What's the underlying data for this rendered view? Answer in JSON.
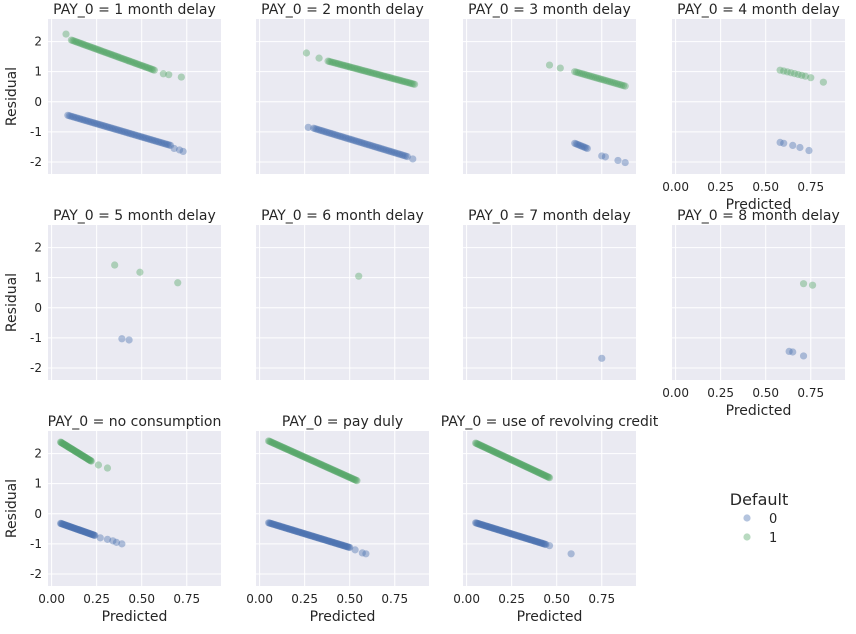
{
  "chart_data": {
    "type": "scatter",
    "facet_title_prefix": "PAY_0 = ",
    "xlabel": "Predicted",
    "ylabel": "Residual",
    "xlim": [
      -0.02,
      0.94
    ],
    "ylim": [
      -2.4,
      2.75
    ],
    "x_ticks": [
      "0.00",
      "0.25",
      "0.50",
      "0.75"
    ],
    "y_ticks": [
      "2",
      "1",
      "0",
      "-1",
      "-2"
    ],
    "grid": true,
    "legend": {
      "title": "Default",
      "position": "lower-right",
      "entries": [
        "0",
        "1"
      ]
    },
    "colors": {
      "0": "#4c72b0",
      "1": "#55a868",
      "axes_bg": "#eaeaf2",
      "grid": "#ffffff"
    },
    "panels": [
      {
        "title": "1 month delay",
        "series": [
          {
            "name": "0",
            "segments": [
              [
                0.09,
                -0.45,
                0.66,
                -1.45,
                70
              ]
            ],
            "points": [
              [
                0.68,
                -1.55
              ],
              [
                0.71,
                -1.6
              ],
              [
                0.73,
                -1.65
              ]
            ]
          },
          {
            "name": "1",
            "segments": [
              [
                0.11,
                2.05,
                0.57,
                1.05,
                60
              ]
            ],
            "points": [
              [
                0.08,
                2.25
              ],
              [
                0.62,
                0.93
              ],
              [
                0.65,
                0.9
              ],
              [
                0.72,
                0.82
              ]
            ]
          }
        ]
      },
      {
        "title": "2 month delay",
        "series": [
          {
            "name": "0",
            "segments": [
              [
                0.3,
                -0.88,
                0.82,
                -1.82,
                60
              ]
            ],
            "points": [
              [
                0.27,
                -0.85
              ],
              [
                0.85,
                -1.9
              ]
            ]
          },
          {
            "name": "1",
            "segments": [
              [
                0.38,
                1.35,
                0.86,
                0.58,
                60
              ]
            ],
            "points": [
              [
                0.26,
                1.62
              ],
              [
                0.33,
                1.45
              ]
            ]
          }
        ]
      },
      {
        "title": "3 month delay",
        "series": [
          {
            "name": "0",
            "segments": [
              [
                0.6,
                -1.38,
                0.67,
                -1.55,
                10
              ]
            ],
            "points": [
              [
                0.75,
                -1.8
              ],
              [
                0.77,
                -1.83
              ],
              [
                0.84,
                -1.95
              ],
              [
                0.88,
                -2.02
              ]
            ]
          },
          {
            "name": "1",
            "segments": [
              [
                0.6,
                1.0,
                0.88,
                0.52,
                30
              ]
            ],
            "points": [
              [
                0.46,
                1.22
              ],
              [
                0.52,
                1.12
              ]
            ]
          }
        ]
      },
      {
        "title": "4 month delay",
        "series": [
          {
            "name": "0",
            "segments": [],
            "points": [
              [
                0.58,
                -1.35
              ],
              [
                0.6,
                -1.38
              ],
              [
                0.65,
                -1.45
              ],
              [
                0.69,
                -1.52
              ],
              [
                0.74,
                -1.62
              ]
            ]
          },
          {
            "name": "1",
            "segments": [
              [
                0.58,
                1.05,
                0.72,
                0.85,
                8
              ]
            ],
            "points": [
              [
                0.75,
                0.8
              ],
              [
                0.82,
                0.65
              ]
            ]
          }
        ]
      },
      {
        "title": "5 month delay",
        "series": [
          {
            "name": "0",
            "points": [
              [
                0.39,
                -1.03
              ],
              [
                0.43,
                -1.07
              ]
            ]
          },
          {
            "name": "1",
            "points": [
              [
                0.35,
                1.42
              ],
              [
                0.49,
                1.18
              ],
              [
                0.7,
                0.83
              ]
            ]
          }
        ]
      },
      {
        "title": "6 month delay",
        "series": [
          {
            "name": "0",
            "points": []
          },
          {
            "name": "1",
            "points": [
              [
                0.55,
                1.05
              ]
            ]
          }
        ]
      },
      {
        "title": "7 month delay",
        "series": [
          {
            "name": "0",
            "points": [
              [
                0.75,
                -1.68
              ]
            ]
          },
          {
            "name": "1",
            "points": []
          }
        ]
      },
      {
        "title": "8 month delay",
        "series": [
          {
            "name": "0",
            "points": [
              [
                0.63,
                -1.45
              ],
              [
                0.65,
                -1.47
              ],
              [
                0.71,
                -1.6
              ]
            ]
          },
          {
            "name": "1",
            "points": [
              [
                0.71,
                0.8
              ],
              [
                0.76,
                0.75
              ]
            ]
          }
        ]
      },
      {
        "title": "no consumption",
        "series": [
          {
            "name": "0",
            "segments": [
              [
                0.05,
                -0.32,
                0.24,
                -0.72,
                50
              ]
            ],
            "points": [
              [
                0.27,
                -0.8
              ],
              [
                0.31,
                -0.85
              ],
              [
                0.34,
                -0.9
              ],
              [
                0.36,
                -0.95
              ],
              [
                0.39,
                -1.0
              ]
            ]
          },
          {
            "name": "1",
            "segments": [
              [
                0.05,
                2.38,
                0.22,
                1.75,
                50
              ]
            ],
            "points": [
              [
                0.26,
                1.62
              ],
              [
                0.31,
                1.52
              ]
            ]
          }
        ]
      },
      {
        "title": "pay duly",
        "series": [
          {
            "name": "0",
            "segments": [
              [
                0.05,
                -0.3,
                0.5,
                -1.12,
                90
              ]
            ],
            "points": [
              [
                0.53,
                -1.2
              ],
              [
                0.57,
                -1.3
              ],
              [
                0.59,
                -1.33
              ]
            ]
          },
          {
            "name": "1",
            "segments": [
              [
                0.05,
                2.42,
                0.54,
                1.1,
                90
              ]
            ],
            "points": []
          }
        ]
      },
      {
        "title": "use of revolving credit",
        "series": [
          {
            "name": "0",
            "segments": [
              [
                0.05,
                -0.3,
                0.44,
                -1.02,
                80
              ]
            ],
            "points": [
              [
                0.46,
                -1.06
              ],
              [
                0.58,
                -1.33
              ]
            ]
          },
          {
            "name": "1",
            "segments": [
              [
                0.05,
                2.35,
                0.46,
                1.2,
                80
              ]
            ],
            "points": []
          }
        ]
      }
    ]
  }
}
